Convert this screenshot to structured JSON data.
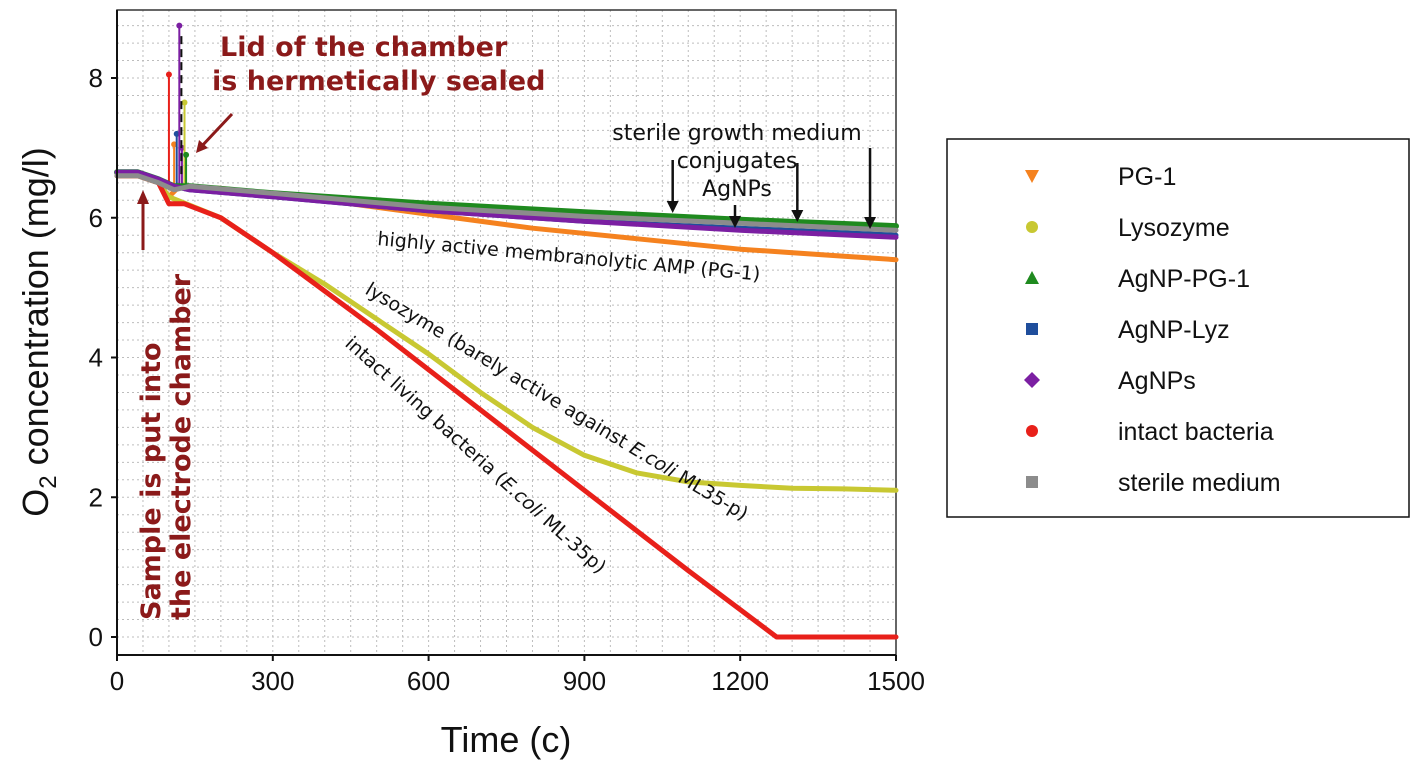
{
  "chart_data": {
    "type": "scatter",
    "xlabel": "Time (c)",
    "ylabel": "O2 concentration (mg/l)",
    "ylabel_main": "O",
    "ylabel_sub": "2",
    "ylabel_rest": " concentration (mg/l)",
    "xlim": [
      0,
      1500
    ],
    "ylim": [
      -0.2,
      9
    ],
    "xticks": [
      "0",
      "300",
      "600",
      "900",
      "1200",
      "1500"
    ],
    "yticks": [
      "0",
      "2",
      "4",
      "6",
      "8"
    ],
    "grid": true,
    "legend_position": "right",
    "series": [
      {
        "name": "PG-1",
        "color": "#f5821f",
        "marker": "triangle-down",
        "x": [
          0,
          40,
          80,
          100,
          120,
          200,
          400,
          600,
          800,
          1000,
          1200,
          1400,
          1500
        ],
        "y": [
          6.6,
          6.6,
          6.5,
          6.3,
          6.45,
          6.42,
          6.25,
          6.05,
          5.85,
          5.7,
          5.55,
          5.45,
          5.4
        ]
      },
      {
        "name": "Lysozyme",
        "color": "#c8c832",
        "marker": "circle",
        "x": [
          0,
          40,
          80,
          100,
          150,
          200,
          300,
          400,
          500,
          600,
          700,
          800,
          900,
          1000,
          1100,
          1200,
          1300,
          1400,
          1500
        ],
        "y": [
          6.6,
          6.6,
          6.5,
          6.3,
          6.15,
          6.0,
          5.5,
          5.05,
          4.55,
          4.05,
          3.5,
          3.0,
          2.6,
          2.35,
          2.22,
          2.17,
          2.13,
          2.12,
          2.1
        ]
      },
      {
        "name": "AgNP-PG-1",
        "color": "#1f8a1f",
        "marker": "triangle-up",
        "x": [
          0,
          40,
          80,
          110,
          140,
          300,
          600,
          900,
          1200,
          1500
        ],
        "y": [
          6.65,
          6.65,
          6.55,
          6.45,
          6.45,
          6.35,
          6.2,
          6.08,
          5.97,
          5.88
        ]
      },
      {
        "name": "AgNP-Lyz",
        "color": "#1f4e9c",
        "marker": "square",
        "x": [
          0,
          40,
          80,
          110,
          140,
          300,
          600,
          900,
          1200,
          1500
        ],
        "y": [
          6.65,
          6.65,
          6.55,
          6.45,
          6.4,
          6.3,
          6.1,
          5.95,
          5.85,
          5.75
        ]
      },
      {
        "name": "AgNPs",
        "color": "#7b1fa2",
        "marker": "diamond",
        "x": [
          0,
          40,
          80,
          110,
          140,
          300,
          600,
          900,
          1200,
          1500
        ],
        "y": [
          6.65,
          6.65,
          6.55,
          6.45,
          6.4,
          6.3,
          6.1,
          5.95,
          5.82,
          5.72
        ]
      },
      {
        "name": "intact bacteria",
        "color": "#e8201a",
        "marker": "circle",
        "x": [
          0,
          40,
          80,
          100,
          130,
          200,
          300,
          500,
          700,
          900,
          1100,
          1270,
          1300,
          1400,
          1500
        ],
        "y": [
          6.6,
          6.6,
          6.5,
          6.2,
          6.2,
          6.0,
          5.5,
          4.4,
          3.25,
          2.1,
          0.95,
          0.0,
          0.0,
          0.0,
          0.0
        ]
      },
      {
        "name": "sterile medium",
        "color": "#8c8c8c",
        "marker": "square",
        "x": [
          0,
          40,
          80,
          110,
          140,
          300,
          600,
          900,
          1200,
          1500
        ],
        "y": [
          6.6,
          6.6,
          6.5,
          6.4,
          6.45,
          6.35,
          6.15,
          6.02,
          5.92,
          5.82
        ]
      }
    ],
    "spikes": [
      {
        "x": 100,
        "y": 8.05,
        "color": "#e8201a"
      },
      {
        "x": 110,
        "y": 7.05,
        "color": "#f5821f"
      },
      {
        "x": 115,
        "y": 7.2,
        "color": "#1f4e9c"
      },
      {
        "x": 120,
        "y": 8.75,
        "color": "#7b1fa2"
      },
      {
        "x": 125,
        "y": 7.0,
        "color": "#7b1fa2"
      },
      {
        "x": 130,
        "y": 7.65,
        "color": "#c8c832"
      },
      {
        "x": 133,
        "y": 6.9,
        "color": "#1f8a1f"
      }
    ],
    "annotations": {
      "lid": [
        "Lid of the chamber",
        "is hermetically sealed"
      ],
      "sample": [
        "Sample is put into",
        "the electrode chamber"
      ],
      "sterile_group": [
        "sterile growth medium",
        "conjugates",
        "AgNPs"
      ],
      "pg1": "highly active membranolytic AMP (PG-1)",
      "lysozyme_pre": "lysozyme (barely active against ",
      "lysozyme_ital": "E.coli",
      "lysozyme_post": " ML35-p)",
      "bacteria_pre": "intact living bacteria (",
      "bacteria_ital": "E.coli",
      "bacteria_post": " ML-35p)"
    },
    "arrow_x": [
      1070,
      1190,
      1310,
      1450
    ]
  },
  "legend": {
    "items": [
      {
        "label": "PG-1",
        "color": "#f5821f",
        "marker": "triangle-down"
      },
      {
        "label": "Lysozyme",
        "color": "#c8c832",
        "marker": "circle"
      },
      {
        "label": "AgNP-PG-1",
        "color": "#1f8a1f",
        "marker": "triangle-up"
      },
      {
        "label": "AgNP-Lyz",
        "color": "#1f4e9c",
        "marker": "square"
      },
      {
        "label": "AgNPs",
        "color": "#7b1fa2",
        "marker": "diamond"
      },
      {
        "label": "intact bacteria",
        "color": "#e8201a",
        "marker": "circle"
      },
      {
        "label": "sterile medium",
        "color": "#8c8c8c",
        "marker": "square"
      }
    ]
  }
}
